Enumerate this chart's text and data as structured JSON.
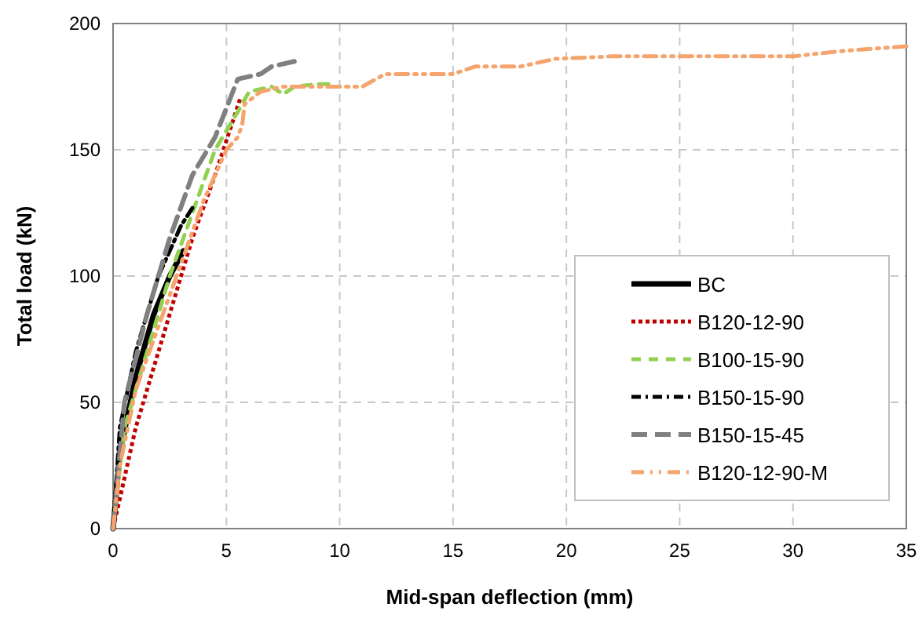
{
  "chart_data": {
    "type": "line",
    "xlabel": "Mid-span deflection (mm)",
    "ylabel": "Total load (kN)",
    "xlim": [
      0,
      35
    ],
    "xticks": [
      0,
      5,
      10,
      15,
      20,
      25,
      30,
      35
    ],
    "ylim": [
      0,
      200
    ],
    "yticks": [
      0,
      50,
      100,
      150,
      200
    ],
    "grid": true,
    "legend": "right",
    "marker": "none",
    "series": [
      {
        "name": "BC",
        "color": "#000000",
        "line_style": "solid",
        "x": [
          0,
          0.3,
          1,
          1.8,
          2.5,
          3.1
        ],
        "values": [
          0,
          30,
          60,
          85,
          100,
          110
        ]
      },
      {
        "name": "B120-12-90",
        "color": "#c00000",
        "line_style": "dotted",
        "x": [
          0,
          1,
          1.5,
          2.5,
          3.5,
          4.5,
          5.6
        ],
        "values": [
          0,
          40,
          55,
          85,
          115,
          140,
          170
        ]
      },
      {
        "name": "B100-15-90",
        "color": "#92d050",
        "line_style": "dashed",
        "x": [
          0,
          0.5,
          1.5,
          2.5,
          3.5,
          4.5,
          5.5,
          6,
          7,
          7.5,
          8,
          9,
          9.5
        ],
        "values": [
          0,
          40,
          70,
          100,
          125,
          150,
          165,
          173,
          175,
          172,
          175,
          176,
          176
        ]
      },
      {
        "name": "B150-15-90",
        "color": "#000000",
        "line_style": "dashdot",
        "x": [
          0,
          0.3,
          1,
          2,
          3,
          3.5
        ],
        "values": [
          0,
          40,
          70,
          100,
          120,
          127
        ]
      },
      {
        "name": "B150-15-45",
        "color": "#808080",
        "line_style": "longdash",
        "x": [
          0,
          0.5,
          1.5,
          2.5,
          3.5,
          4.5,
          5.5,
          6.5,
          7,
          8
        ],
        "values": [
          0,
          50,
          85,
          115,
          140,
          155,
          178,
          180,
          183,
          185
        ]
      },
      {
        "name": "B120-12-90-M",
        "color": "#f4a46c",
        "line_style": "dashdotdot",
        "x": [
          0,
          0.3,
          1,
          2,
          3,
          4,
          5,
          5.5,
          5.7,
          5.8,
          6.5,
          7.5,
          9,
          11,
          12,
          15,
          16,
          18,
          19.5,
          22,
          25,
          30,
          32,
          35
        ],
        "values": [
          0,
          25,
          55,
          80,
          105,
          130,
          150,
          155,
          160,
          168,
          173,
          175,
          175,
          175,
          180,
          180,
          183,
          183,
          186,
          187,
          187,
          187,
          189,
          191
        ]
      }
    ]
  }
}
